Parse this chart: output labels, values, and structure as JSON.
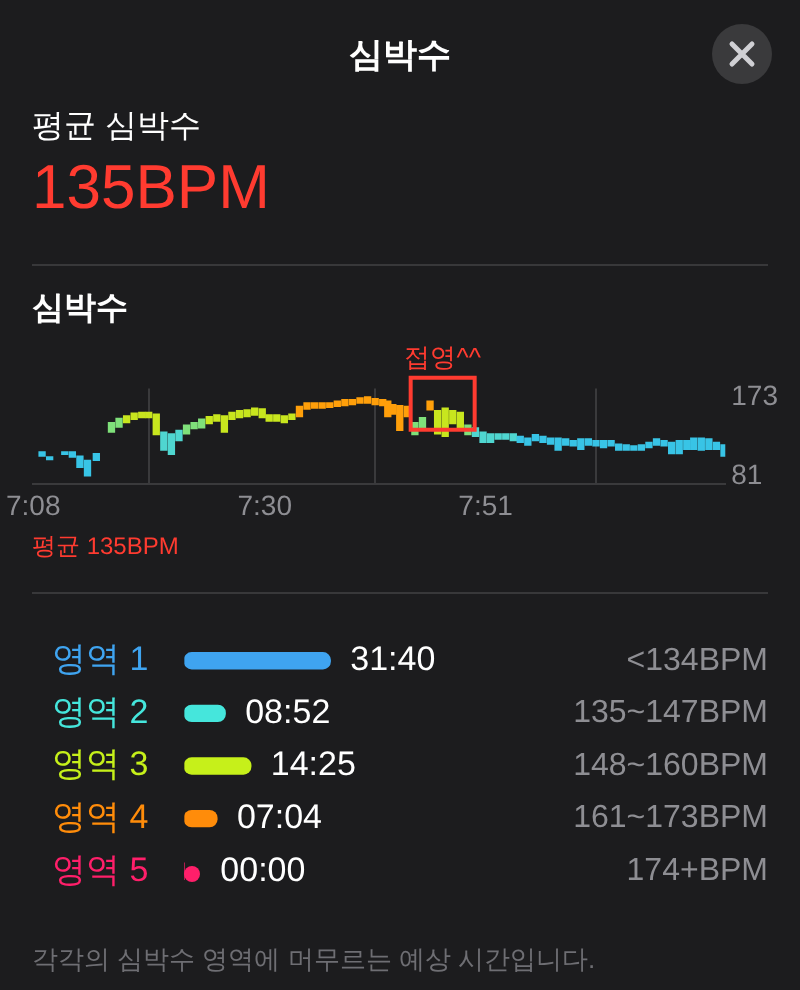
{
  "chart_data": [
    {
      "type": "other",
      "title": "심박수",
      "annotations": [
        "평균 심박수",
        "135BPM"
      ]
    },
    {
      "type": "bar",
      "title": "심박수",
      "x": [
        7.147,
        7.159,
        7.183,
        7.195,
        7.207,
        7.219,
        7.233,
        7.257,
        7.269,
        7.281,
        7.293,
        7.305,
        7.316,
        7.328,
        7.34,
        7.352,
        7.364,
        7.376,
        7.388,
        7.4,
        7.412,
        7.424,
        7.436,
        7.448,
        7.46,
        7.472,
        7.484,
        7.496,
        7.507,
        7.519,
        7.531,
        7.543,
        7.555,
        7.567,
        7.579,
        7.591,
        7.603,
        7.615,
        7.627,
        7.639,
        7.651,
        7.663,
        7.675,
        7.687,
        7.695,
        7.703,
        7.714,
        7.726,
        7.738,
        7.75,
        7.762,
        7.774,
        7.786,
        7.798,
        7.81,
        7.822,
        7.834,
        7.846,
        7.858,
        7.87,
        7.882,
        7.894,
        7.905,
        7.917,
        7.929,
        7.941,
        7.953,
        7.965,
        7.977,
        7.989,
        8.001,
        8.013,
        8.025,
        8.037,
        8.049,
        8.061,
        8.073,
        8.085,
        8.097,
        8.109,
        8.121,
        8.133,
        8.145,
        8.157,
        8.169,
        8.18,
        8.192,
        8.204,
        8.216,
        8.228
      ],
      "base": [
        104,
        100,
        106,
        103,
        91,
        81,
        99,
        132,
        138,
        143,
        147,
        149,
        149,
        129,
        111,
        106,
        122,
        130,
        136,
        137,
        142,
        145,
        132,
        147,
        149,
        150,
        152,
        149,
        145,
        145,
        143,
        147,
        150,
        159,
        160,
        160,
        161,
        162,
        163,
        164,
        166,
        166,
        164,
        163,
        150,
        153,
        134,
        150,
        129,
        137,
        158,
        130,
        127,
        142,
        137,
        129,
        127,
        120,
        120,
        124,
        124,
        122,
        120,
        117,
        122,
        120,
        118,
        111,
        117,
        116,
        112,
        117,
        116,
        114,
        116,
        111,
        111,
        111,
        111,
        114,
        117,
        116,
        107,
        107,
        112,
        112,
        111,
        112,
        112,
        104
      ],
      "values": [
        5,
        3,
        3,
        6,
        13,
        18,
        8,
        11,
        10,
        8,
        7,
        6,
        6,
        24,
        21,
        24,
        12,
        10,
        7,
        10,
        8,
        7,
        19,
        8,
        8,
        8,
        8,
        10,
        7,
        7,
        8,
        6,
        12,
        7,
        6,
        6,
        5,
        6,
        7,
        6,
        6,
        7,
        7,
        7,
        18,
        11,
        29,
        12,
        14,
        12,
        10,
        27,
        33,
        15,
        18,
        11,
        10,
        12,
        10,
        6,
        6,
        8,
        7,
        8,
        7,
        7,
        7,
        14,
        7,
        6,
        12,
        7,
        6,
        8,
        6,
        7,
        6,
        5,
        6,
        6,
        7,
        6,
        13,
        15,
        10,
        13,
        14,
        12,
        8,
        13
      ],
      "colors": [
        "#38c4e6",
        "#38c4e6",
        "#38c4e6",
        "#38c4e6",
        "#38c4e6",
        "#38c4e6",
        "#38c4e6",
        "#7fe07a",
        "#7fe07a",
        "#c8e61e",
        "#c8e61e",
        "#c8e61e",
        "#c8e61e",
        "#c8e61e",
        "#4fd6d0",
        "#4fd6d0",
        "#4fd6d0",
        "#7fe07a",
        "#7fe07a",
        "#7fe07a",
        "#c8e61e",
        "#c8e61e",
        "#c8e61e",
        "#c8e61e",
        "#c8e61e",
        "#c8e61e",
        "#c8e61e",
        "#c8e61e",
        "#c8e61e",
        "#c8e61e",
        "#c8e61e",
        "#c8e61e",
        "#ff9f0a",
        "#ff9f0a",
        "#ff9f0a",
        "#ff9f0a",
        "#ff9f0a",
        "#ff9f0a",
        "#ff9f0a",
        "#ff9f0a",
        "#ff9f0a",
        "#ff9f0a",
        "#ff9f0a",
        "#ff9f0a",
        "#ff9f0a",
        "#ff9f0a",
        "#ff9f0a",
        "#ff9f0a",
        "#7fe07a",
        "#7fe07a",
        "#ff9f0a",
        "#c8e61e",
        "#c8e61e",
        "#c8e61e",
        "#c8e61e",
        "#7fe07a",
        "#4fd6d0",
        "#4fd6d0",
        "#4fd6d0",
        "#4fd6d0",
        "#4fd6d0",
        "#4fd6d0",
        "#38c4e6",
        "#38c4e6",
        "#38c4e6",
        "#38c4e6",
        "#38c4e6",
        "#38c4e6",
        "#38c4e6",
        "#38c4e6",
        "#38c4e6",
        "#38c4e6",
        "#38c4e6",
        "#38c4e6",
        "#38c4e6",
        "#38c4e6",
        "#38c4e6",
        "#38c4e6",
        "#38c4e6",
        "#38c4e6",
        "#38c4e6",
        "#38c4e6",
        "#38c4e6",
        "#38c4e6",
        "#38c4e6",
        "#38c4e6",
        "#38c4e6",
        "#38c4e6",
        "#38c4e6",
        "#38c4e6"
      ],
      "xlim": [
        7.133,
        8.23
      ],
      "xticks": [
        {
          "value": 7.133,
          "label": "7:08"
        },
        {
          "value": 7.5,
          "label": "7:30"
        },
        {
          "value": 7.85,
          "label": "7:51"
        }
      ],
      "ylim": [
        71,
        183
      ],
      "yticks": [
        81,
        173
      ],
      "grid": "x",
      "annotations": [
        {
          "text": "접영^^",
          "x": 7.782,
          "y": 165
        },
        "평균 135BPM"
      ]
    },
    {
      "type": "bar",
      "orientation": "horizontal",
      "categories": [
        "영역 1",
        "영역 2",
        "영역 3",
        "영역 4",
        "영역 5"
      ],
      "values": [
        31.667,
        8.867,
        14.417,
        7.067,
        0
      ],
      "colors": [
        "#3fa4f0",
        "#45e6dc",
        "#c6f01a",
        "#ff8c0a",
        "#ff1f6a"
      ],
      "value_labels": [
        "31:40",
        "08:52",
        "14:25",
        "07:04",
        "00:00"
      ],
      "annotations": [
        "<134BPM",
        "135~147BPM",
        "148~160BPM",
        "161~173BPM",
        "174+BPM",
        "각각의 심박수 영역에 머무르는 예상 시간입니다."
      ]
    }
  ]
}
